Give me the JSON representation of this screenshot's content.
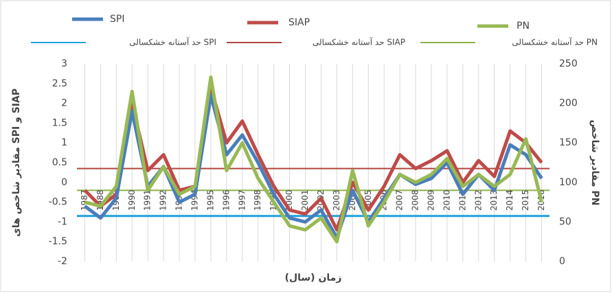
{
  "chart_data": {
    "type": "line",
    "categories": [
      "1987",
      "1988",
      "1989",
      "1990",
      "1991",
      "1992",
      "1993",
      "1994",
      "1995",
      "1996",
      "1997",
      "1998",
      "1999",
      "2000",
      "2001",
      "2002",
      "2003",
      "2004",
      "2005",
      "2006",
      "2007",
      "2008",
      "2009",
      "2010",
      "2011",
      "2012",
      "2013",
      "2014",
      "2015",
      "2016"
    ],
    "series": [
      {
        "name": "SPI",
        "color": "#4a7ebb",
        "values": [
          -0.6,
          -0.9,
          -0.4,
          1.8,
          -0.1,
          0.4,
          -0.5,
          -0.3,
          2.2,
          0.7,
          1.2,
          0.5,
          -0.3,
          -0.9,
          -1.0,
          -0.7,
          -1.4,
          -0.2,
          -1.0,
          -0.4,
          0.2,
          -0.05,
          0.1,
          0.5,
          -0.3,
          0.2,
          -0.2,
          0.95,
          0.7,
          0.1
        ]
      },
      {
        "name": "SIAP",
        "color": "#be4b48",
        "values": [
          -0.2,
          -0.6,
          -0.3,
          2.0,
          0.3,
          0.7,
          -0.2,
          -0.1,
          2.4,
          1.0,
          1.55,
          0.7,
          -0.1,
          -0.7,
          -0.8,
          -0.4,
          -1.2,
          0.0,
          -0.7,
          -0.1,
          0.7,
          0.35,
          0.55,
          0.8,
          0.0,
          0.55,
          0.15,
          1.3,
          1.0,
          0.5
        ]
      },
      {
        "name": "PN",
        "color": "#98b954",
        "axis": "y2",
        "values": [
          75,
          70,
          95,
          215,
          90,
          120,
          85,
          95,
          233,
          115,
          150,
          105,
          75,
          45,
          40,
          55,
          25,
          115,
          45,
          75,
          110,
          100,
          110,
          130,
          95,
          110,
          95,
          110,
          155,
          75
        ]
      }
    ],
    "thresholds": [
      {
        "name": "حد آستانه خشکسالی SPI",
        "color": "#1ea0d8",
        "value": -0.85
      },
      {
        "name": "حد آستانه خشکسالی SIAP",
        "color": "#b0453f",
        "value": 0.35
      },
      {
        "name": "حد آستانه خشکسالی PN",
        "color": "#8db04a",
        "value": 90,
        "axis": "y2"
      }
    ],
    "ylabel": "مقادیر شاخص های SPI و SIAP",
    "y2label": "مقادیر شاخص PN",
    "xlabel": "زمان (سال)",
    "ylim": [
      -2,
      3
    ],
    "yticks": [
      3,
      2.5,
      2,
      1.5,
      1,
      0.5,
      0,
      -0.5,
      -1,
      -1.5,
      -2
    ],
    "y2lim": [
      0,
      250
    ],
    "y2ticks": [
      250,
      200,
      150,
      100,
      50,
      0
    ],
    "grid": true
  }
}
